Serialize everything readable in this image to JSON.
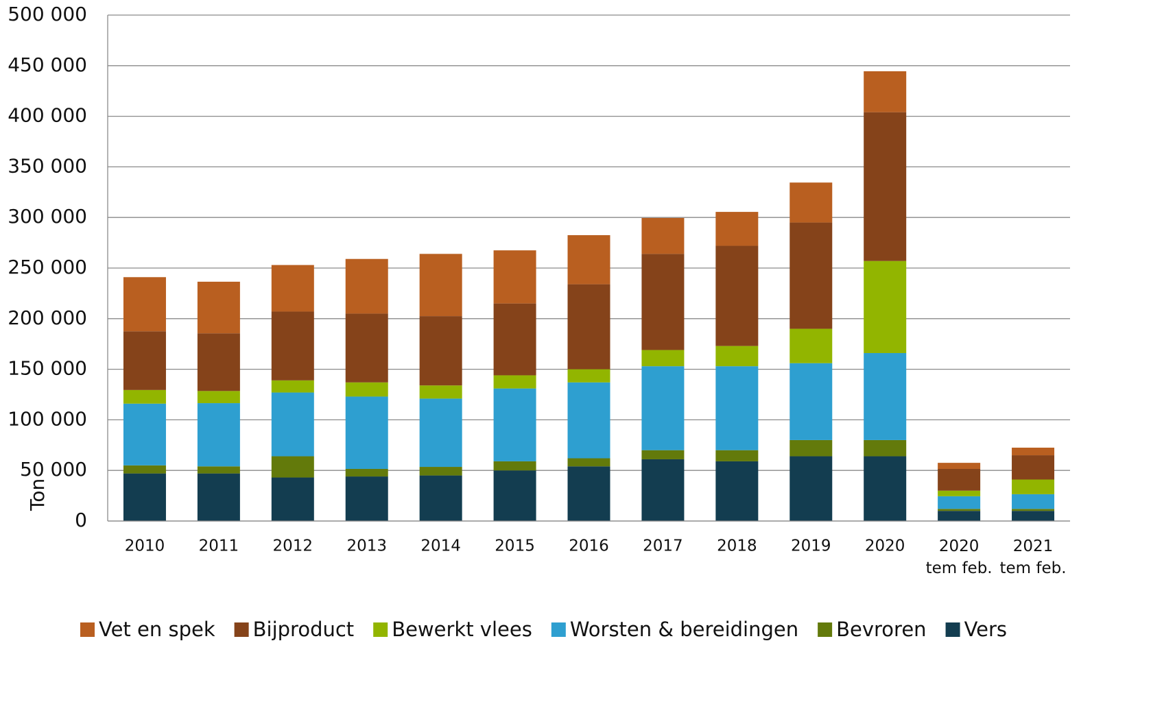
{
  "chart_data": {
    "type": "stacked_bar",
    "y_label": "Ton",
    "categories": [
      "2010",
      "2011",
      "2012",
      "2013",
      "2014",
      "2015",
      "2016",
      "2017",
      "2018",
      "2019",
      "2020",
      "2020\ntem feb.",
      "2021\ntem feb."
    ],
    "series": [
      {
        "name": "Vet en spek",
        "color": "#b95f20",
        "values": [
          53500,
          51000,
          46000,
          54000,
          61500,
          52500,
          48500,
          35500,
          33500,
          39500,
          40500,
          6000,
          7500
        ]
      },
      {
        "name": "Bijproduct",
        "color": "#85431a",
        "values": [
          58000,
          57000,
          68000,
          68000,
          68500,
          71000,
          84000,
          95000,
          99000,
          105000,
          147000,
          21500,
          24000
        ]
      },
      {
        "name": "Bewerkt vlees",
        "color": "#92b500",
        "values": [
          13500,
          12000,
          12000,
          14000,
          13000,
          13000,
          13000,
          16000,
          20000,
          34000,
          91000,
          5500,
          14500
        ]
      },
      {
        "name": "Worsten & bereidingen",
        "color": "#2e9fd0",
        "values": [
          61000,
          62500,
          63000,
          71500,
          67500,
          72000,
          75000,
          83000,
          83000,
          76000,
          86000,
          12500,
          14500
        ]
      },
      {
        "name": "Bevroren",
        "color": "#637a0b",
        "values": [
          8000,
          7000,
          21000,
          7500,
          8500,
          9000,
          8000,
          9000,
          11000,
          16000,
          16000,
          2000,
          2000
        ]
      },
      {
        "name": "Vers",
        "color": "#133d50",
        "values": [
          47000,
          47000,
          43000,
          44000,
          45000,
          50000,
          54000,
          61000,
          59000,
          64000,
          64000,
          10000,
          10000
        ]
      }
    ],
    "ylim": [
      0,
      500000
    ],
    "yticks": [
      0,
      {
        "value": 50000,
        "label": "50 000"
      },
      {
        "value": 100000,
        "label": "100 000"
      },
      {
        "value": 150000,
        "label": "150 000"
      },
      {
        "value": 200000,
        "label": "200 000"
      },
      {
        "value": 250000,
        "label": "250 000"
      },
      {
        "value": 300000,
        "label": "300 000"
      },
      {
        "value": 350000,
        "label": "350 000"
      },
      {
        "value": 400000,
        "label": "400 000"
      },
      {
        "value": 450000,
        "label": "450 000"
      },
      {
        "value": 500000,
        "label": "500 000"
      }
    ],
    "grid": true,
    "legend": "bottom"
  }
}
